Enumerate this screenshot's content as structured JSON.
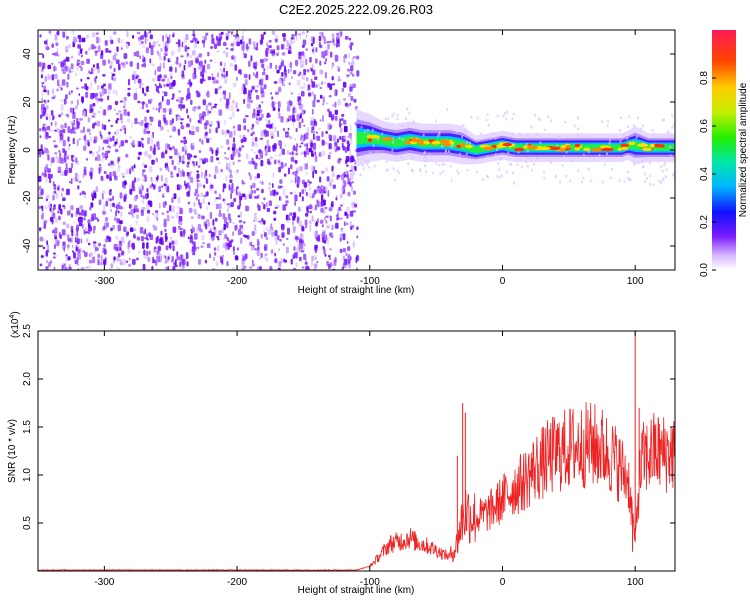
{
  "title": "C2E2.2025.222.09.26.R03",
  "chart_data": [
    {
      "type": "heatmap",
      "xlabel": "Height of straight line (km)",
      "ylabel": "Frequency (Hz)",
      "xlim": [
        -350,
        130
      ],
      "ylim": [
        -50,
        50
      ],
      "xticks": [
        -300,
        -200,
        -100,
        0,
        100
      ],
      "yticks": [
        -40,
        -20,
        0,
        20,
        40
      ],
      "noise_region_x": [
        -350,
        -110
      ],
      "signal_band": {
        "x": [
          -110,
          -100,
          -90,
          -80,
          -70,
          -60,
          -50,
          -40,
          -30,
          -20,
          -10,
          0,
          10,
          20,
          40,
          60,
          80,
          90,
          95,
          100,
          110,
          130
        ],
        "center_hz": [
          5,
          5,
          4,
          3,
          4,
          3,
          3,
          3,
          2,
          0,
          1,
          2,
          1,
          1,
          1,
          1,
          1,
          1,
          2,
          2,
          1,
          1
        ],
        "halfwidth_hz": [
          6,
          5,
          4,
          4,
          4,
          4,
          4,
          4,
          4,
          3,
          3,
          3,
          3,
          3,
          3,
          3,
          3,
          3,
          3,
          4,
          3,
          3
        ]
      },
      "colorbar": {
        "label": "Normalized spectral amplitude",
        "range": [
          0,
          1
        ],
        "ticks": [
          "0.0",
          "0.2",
          "0.4",
          "0.6",
          "0.8"
        ]
      }
    },
    {
      "type": "line",
      "xlabel": "Height of straight line (km)",
      "ylabel": "SNR (10 * v/v)",
      "exponent_label": "(x10",
      "exponent_power": "4",
      "exponent_close": ")",
      "xlim": [
        -350,
        130
      ],
      "ylim": [
        0,
        2.5
      ],
      "xticks": [
        -300,
        -200,
        -100,
        0,
        100
      ],
      "yticks": [
        "0.5",
        "1.0",
        "1.5",
        "2.0",
        "2.5"
      ],
      "series": [
        {
          "color": "#ee2222",
          "x": [
            -350,
            -110,
            -100,
            -95,
            -90,
            -85,
            -80,
            -75,
            -70,
            -65,
            -60,
            -55,
            -50,
            -45,
            -40,
            -35,
            -30,
            -28,
            -25,
            -20,
            -15,
            -10,
            -5,
            0,
            5,
            10,
            15,
            20,
            25,
            30,
            35,
            40,
            45,
            50,
            55,
            60,
            65,
            70,
            75,
            80,
            85,
            90,
            95,
            98,
            100,
            102,
            105,
            110,
            115,
            120,
            130
          ],
          "y": [
            0.01,
            0.01,
            0.05,
            0.12,
            0.2,
            0.28,
            0.3,
            0.32,
            0.35,
            0.3,
            0.28,
            0.25,
            0.22,
            0.18,
            0.15,
            0.25,
            0.55,
            0.62,
            0.6,
            0.55,
            0.58,
            0.62,
            0.68,
            0.75,
            0.82,
            0.88,
            0.92,
            1.0,
            1.08,
            1.12,
            1.18,
            1.22,
            1.25,
            1.28,
            1.3,
            1.3,
            1.32,
            1.3,
            1.28,
            1.22,
            1.15,
            1.05,
            0.95,
            0.55,
            0.3,
            0.75,
            1.15,
            1.2,
            1.25,
            1.22,
            1.25
          ],
          "spikes": [
            {
              "x": -30,
              "y": 1.75
            },
            {
              "x": -28,
              "y": 1.65
            },
            {
              "x": -34,
              "y": 1.2
            },
            {
              "x": 100,
              "y": 2.5
            },
            {
              "x": 98,
              "y": 0.2
            },
            {
              "x": 103,
              "y": 1.7
            }
          ]
        }
      ]
    }
  ]
}
